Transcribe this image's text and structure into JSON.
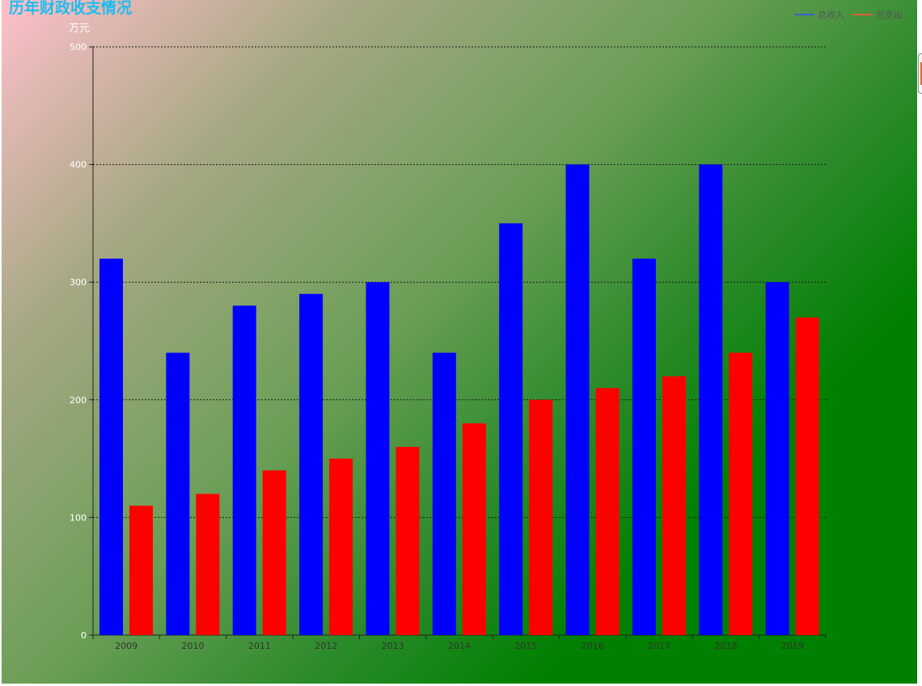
{
  "chart_data": {
    "type": "bar",
    "title": "历年财政收支情况",
    "ylabel": "万元",
    "xlabel": "",
    "categories": [
      "2009",
      "2010",
      "2011",
      "2012",
      "2013",
      "2014",
      "2015",
      "2016",
      "2017",
      "2018",
      "2019"
    ],
    "series": [
      {
        "name": "总收入",
        "color": "#0000ff",
        "values": [
          320,
          240,
          280,
          290,
          300,
          240,
          350,
          400,
          320,
          400,
          300
        ]
      },
      {
        "name": "总支出",
        "color": "#ff0000",
        "values": [
          110,
          120,
          140,
          150,
          160,
          180,
          200,
          210,
          220,
          240,
          270
        ]
      }
    ],
    "ylim": [
      0,
      500
    ],
    "yticks": [
      0,
      100,
      200,
      300,
      400,
      500
    ],
    "grid": true,
    "legend_position": "top-right"
  },
  "legend_colors": {
    "series_0": "#3a5fcd",
    "series_1": "#e0603a"
  }
}
